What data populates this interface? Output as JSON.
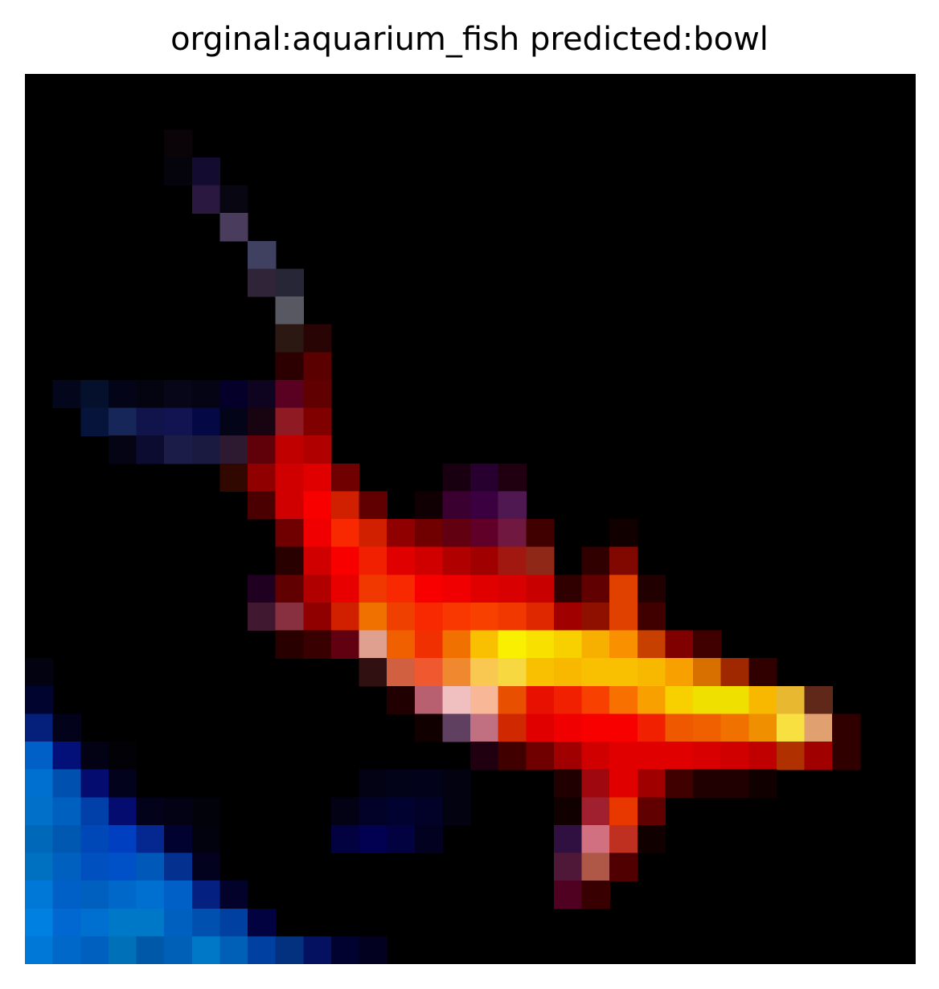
{
  "figure": {
    "title": "orginal:aquarium_fish predicted:bowl",
    "image_description_colors": {
      "background": "#000000",
      "fish_red": "#e00000",
      "fish_orange": "#f26000",
      "fish_yellow": "#f8e800",
      "water_blue": "#0070c8",
      "fin_purple": "#3a1040"
    }
  }
}
